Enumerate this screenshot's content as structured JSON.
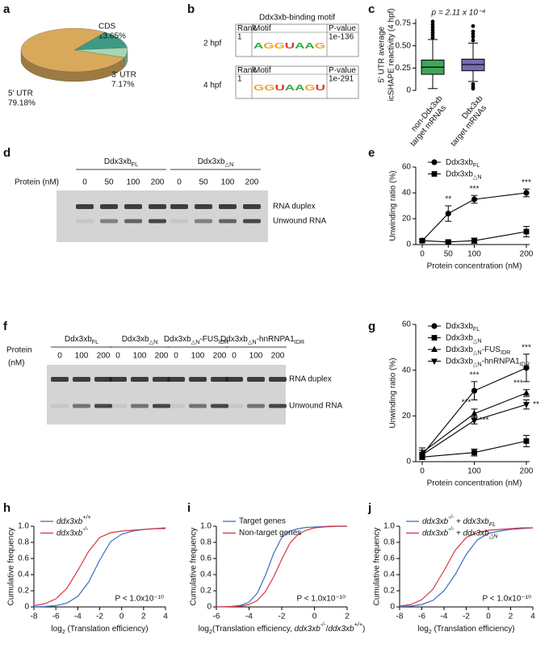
{
  "panel_labels": [
    "a",
    "b",
    "c",
    "d",
    "e",
    "f",
    "g",
    "h",
    "i",
    "j"
  ],
  "motif_table": {
    "title": "Ddx3xb-binding motif",
    "headers": [
      "Rank",
      "Motif",
      "P-value"
    ],
    "rows": [
      {
        "stage": "2 hpf",
        "rank": "1",
        "motif": "AGGUAAG",
        "p": "1e-136"
      },
      {
        "stage": "4 hpf",
        "rank": "1",
        "motif": "GGUAAGU",
        "p": "1e-291"
      }
    ]
  },
  "gels": [
    {
      "groups": [
        [
          {
            "text": "Ddx3xb"
          },
          {
            "text": "FL",
            "pos": "sub"
          }
        ],
        [
          {
            "text": "Ddx3xb"
          },
          {
            "text": "△N",
            "pos": "sub"
          }
        ]
      ],
      "protein_label": [
        "Protein (nM)"
      ],
      "lanes": [
        0,
        50,
        100,
        200,
        0,
        50,
        100,
        200
      ],
      "bands": [
        "RNA duplex",
        "Unwound RNA"
      ]
    },
    {
      "groups": [
        [
          {
            "text": "Ddx3xb"
          },
          {
            "text": "FL",
            "pos": "sub"
          }
        ],
        [
          {
            "text": "Ddx3xb"
          },
          {
            "text": "△N",
            "pos": "sub"
          }
        ],
        [
          {
            "text": "Ddx3xb"
          },
          {
            "text": "△N",
            "pos": "sub"
          },
          {
            "text": "-FUS"
          },
          {
            "text": "IDR",
            "pos": "sub"
          }
        ],
        [
          {
            "text": "Ddx3xb"
          },
          {
            "text": "△N",
            "pos": "sub"
          },
          {
            "text": "-hnRNPA1"
          },
          {
            "text": "IDR",
            "pos": "sub"
          }
        ]
      ],
      "protein_label": [
        "Protein",
        "(nM)"
      ],
      "lanes": [
        0,
        100,
        200,
        0,
        100,
        200,
        0,
        100,
        200,
        0,
        100,
        200
      ],
      "bands": [
        "RNA duplex",
        "Unwound RNA"
      ]
    }
  ],
  "chart_data": [
    {
      "type": "pie",
      "categories": [
        "CDS",
        "3' UTR",
        "5' UTR"
      ],
      "values": [
        13.65,
        7.17,
        79.18
      ],
      "value_labels": [
        "13.65%",
        "7.17%",
        "79.18%"
      ],
      "colors": [
        "#3f9a83",
        "#a6d7b4",
        "#d9a95b"
      ]
    },
    {
      "type": "box",
      "title": "p = 2.11 x 10⁻⁴",
      "ylabel": [
        "5' UTR average",
        "icSHAPE reactivity (4 hpf)"
      ],
      "categories": [
        [
          "non-Ddx3xb",
          "target mRNAs"
        ],
        [
          "Ddx3xb",
          "target mRNAs"
        ]
      ],
      "colors": [
        "#3fa65a",
        "#7b6ab3"
      ],
      "ylim": [
        0,
        0.8
      ],
      "yticks": [
        0,
        0.25,
        {
          "value": 0.5,
          "label": "0.50"
        },
        0.75
      ],
      "boxes": [
        {
          "whislo": 0.02,
          "q1": 0.18,
          "med": 0.26,
          "q3": 0.34,
          "whishi": 0.57,
          "fliers": [
            0.59,
            0.62,
            0.65,
            0.68,
            0.71,
            0.74,
            0.77
          ]
        },
        {
          "whislo": 0.1,
          "q1": 0.22,
          "med": 0.29,
          "q3": 0.35,
          "whishi": 0.53,
          "fliers": [
            0.56,
            0.6,
            0.63,
            0.66,
            0.72,
            0.07,
            0.04,
            0.02
          ]
        }
      ]
    },
    {
      "type": "line",
      "x": [
        0,
        50,
        100,
        200
      ],
      "xlim": [
        0,
        200
      ],
      "xticks": [
        0,
        50,
        100,
        200
      ],
      "ylim": [
        0,
        60
      ],
      "yticks": [
        0,
        20,
        40,
        60
      ],
      "xlabel": "Protein concentration (nM)",
      "ylabel": "Unwinding ratio (%)",
      "series": [
        {
          "name": [
            {
              "text": "Ddx3xb"
            },
            {
              "text": "FL",
              "pos": "sub"
            }
          ],
          "marker": "circle",
          "color": "#000000",
          "values": [
            3,
            24,
            35,
            40
          ],
          "errors": [
            1,
            6,
            3,
            3
          ],
          "significance": [
            null,
            "**",
            "***",
            "***"
          ]
        },
        {
          "name": [
            {
              "text": "Ddx3xb"
            },
            {
              "text": "△N",
              "pos": "sub"
            }
          ],
          "marker": "square",
          "color": "#000000",
          "values": [
            3,
            2,
            3,
            10
          ],
          "errors": [
            1,
            1,
            2,
            4
          ]
        }
      ]
    },
    {
      "type": "line",
      "x": [
        0,
        100,
        200
      ],
      "xlim": [
        0,
        200
      ],
      "xticks": [
        0,
        100,
        200
      ],
      "ylim": [
        0,
        60
      ],
      "yticks": [
        0,
        20,
        40,
        60
      ],
      "xlabel": "Protein concentration (nM)",
      "ylabel": "Unwinding ratio (%)",
      "series": [
        {
          "name": [
            {
              "text": "Ddx3xb"
            },
            {
              "text": "FL",
              "pos": "sub"
            }
          ],
          "marker": "circle",
          "color": "#000000",
          "values": [
            3,
            31,
            41
          ],
          "errors": [
            1,
            4,
            6
          ],
          "significance": [
            null,
            "***",
            "***"
          ]
        },
        {
          "name": [
            {
              "text": "Ddx3xb"
            },
            {
              "text": "△N",
              "pos": "sub"
            }
          ],
          "marker": "square",
          "color": "#000000",
          "values": [
            2,
            4,
            9
          ],
          "errors": [
            1,
            1.5,
            2.5
          ]
        },
        {
          "name": [
            {
              "text": "Ddx3xb"
            },
            {
              "text": "△N",
              "pos": "sub"
            },
            {
              "text": "-FUS"
            },
            {
              "text": "IDR",
              "pos": "sub"
            }
          ],
          "marker": "triangle-up",
          "color": "#000000",
          "values": [
            4,
            21,
            30
          ],
          "errors": [
            2,
            2,
            1.5
          ],
          "significance": [
            null,
            "***",
            "***"
          ]
        },
        {
          "name": [
            {
              "text": "Ddx3xb"
            },
            {
              "text": "△N",
              "pos": "sub"
            },
            {
              "text": "-hnRNPA1"
            },
            {
              "text": "IDR",
              "pos": "sub"
            }
          ],
          "marker": "triangle-down",
          "color": "#000000",
          "values": [
            3,
            18,
            25
          ],
          "errors": [
            2,
            1.5,
            2
          ],
          "significance": [
            null,
            "***",
            "**"
          ]
        }
      ]
    },
    {
      "type": "line",
      "x": [
        -8,
        -7,
        -6,
        -5,
        -4,
        -3,
        -2,
        -1,
        0,
        1,
        2,
        3,
        4
      ],
      "xlim": [
        -8,
        4
      ],
      "xticks": [
        -8,
        -6,
        -4,
        -2,
        0,
        2,
        4
      ],
      "ylim": [
        0,
        1
      ],
      "yticks": [
        0,
        0.2,
        0.4,
        0.6,
        0.8,
        {
          "value": 1,
          "label": "1.0"
        }
      ],
      "xlabel": [
        {
          "text": "log"
        },
        {
          "text": "2",
          "pos": "sub"
        },
        {
          "text": " (Translation efficiency)"
        }
      ],
      "ylabel": "Cumulative frequency",
      "annotation": "P < 1.0x10⁻¹⁰",
      "series": [
        {
          "name": [
            {
              "text": "ddx3xb",
              "italic": true
            },
            {
              "text": "+/+",
              "pos": "sup",
              "italic": true
            }
          ],
          "color": "#3b6fc4",
          "values": [
            0.002,
            0.005,
            0.016,
            0.047,
            0.13,
            0.31,
            0.58,
            0.81,
            0.9,
            0.94,
            0.96,
            0.97,
            0.98
          ]
        },
        {
          "name": [
            {
              "text": "ddx3xb",
              "italic": true
            },
            {
              "text": "-/-",
              "pos": "sup",
              "italic": true
            }
          ],
          "color": "#d9343f",
          "values": [
            0.015,
            0.04,
            0.1,
            0.23,
            0.45,
            0.69,
            0.86,
            0.92,
            0.94,
            0.95,
            0.96,
            0.97,
            0.97
          ]
        }
      ]
    },
    {
      "type": "line",
      "x": [
        -6,
        -5.5,
        -5,
        -4.5,
        -4,
        -3.5,
        -3,
        -2.5,
        -2,
        -1.5,
        -1,
        -0.5,
        0,
        0.5,
        1,
        1.5,
        2
      ],
      "xlim": [
        -6,
        2
      ],
      "xticks": [
        -6,
        -4,
        -2,
        0,
        2
      ],
      "ylim": [
        0,
        1
      ],
      "yticks": [
        0,
        0.2,
        0.4,
        0.6,
        0.8,
        {
          "value": 1,
          "label": "1.0"
        }
      ],
      "xlabel": [
        {
          "text": "log"
        },
        {
          "text": "2",
          "pos": "sub"
        },
        {
          "text": "(Translation efficiency, "
        },
        {
          "text": "ddx3xb",
          "italic": true
        },
        {
          "text": "-/-",
          "pos": "sup",
          "italic": true
        },
        {
          "text": "/"
        },
        {
          "text": "ddx3xb",
          "italic": true
        },
        {
          "text": "+/+",
          "pos": "sup",
          "italic": true
        },
        {
          "text": ")"
        }
      ],
      "ylabel": "Cumulative frequency",
      "annotation": "P < 1.0x10⁻¹⁰",
      "series": [
        {
          "name": "Target genes",
          "color": "#3b6fc4",
          "values": [
            0.001,
            0.003,
            0.008,
            0.02,
            0.06,
            0.17,
            0.39,
            0.66,
            0.86,
            0.94,
            0.97,
            0.985,
            0.99,
            0.995,
            1,
            1,
            1
          ]
        },
        {
          "name": "Non-target genes",
          "color": "#d9343f",
          "values": [
            0.001,
            0.002,
            0.005,
            0.01,
            0.03,
            0.08,
            0.19,
            0.37,
            0.59,
            0.79,
            0.9,
            0.95,
            0.98,
            0.99,
            0.995,
            1,
            1
          ]
        }
      ]
    },
    {
      "type": "line",
      "x": [
        -8,
        -7,
        -6,
        -5,
        -4,
        -3,
        -2,
        -1,
        0,
        1,
        2,
        3,
        4
      ],
      "xlim": [
        -8,
        4
      ],
      "xticks": [
        -8,
        -6,
        -4,
        -2,
        0,
        2,
        4
      ],
      "ylim": [
        0,
        1
      ],
      "yticks": [
        0,
        0.2,
        0.4,
        0.6,
        0.8,
        {
          "value": 1,
          "label": "1.0"
        }
      ],
      "xlabel": [
        {
          "text": "log"
        },
        {
          "text": "2",
          "pos": "sub"
        },
        {
          "text": " (Translation efficiency)"
        }
      ],
      "ylabel": "Cumulative frequency",
      "annotation": "P < 1.0x10⁻¹⁰",
      "series": [
        {
          "name": [
            {
              "text": "ddx3xb",
              "italic": true
            },
            {
              "text": "-/-",
              "pos": "sup",
              "italic": true
            },
            {
              "text": " + ",
              "italic": true
            },
            {
              "text": "ddx3xb",
              "italic": true
            },
            {
              "text": "FL",
              "pos": "sub",
              "italic": true
            }
          ],
          "color": "#3b6fc4",
          "values": [
            0.003,
            0.01,
            0.03,
            0.08,
            0.2,
            0.4,
            0.65,
            0.83,
            0.91,
            0.94,
            0.96,
            0.97,
            0.98
          ]
        },
        {
          "name": [
            {
              "text": "ddx3xb",
              "italic": true
            },
            {
              "text": "-/-",
              "pos": "sup",
              "italic": true
            },
            {
              "text": " + ",
              "italic": true
            },
            {
              "text": "ddx3xb",
              "italic": true
            },
            {
              "text": "△N",
              "pos": "sub",
              "italic": true
            }
          ],
          "color": "#d9343f",
          "values": [
            0.01,
            0.03,
            0.09,
            0.22,
            0.45,
            0.7,
            0.86,
            0.92,
            0.95,
            0.96,
            0.97,
            0.98,
            0.98
          ]
        }
      ]
    }
  ]
}
